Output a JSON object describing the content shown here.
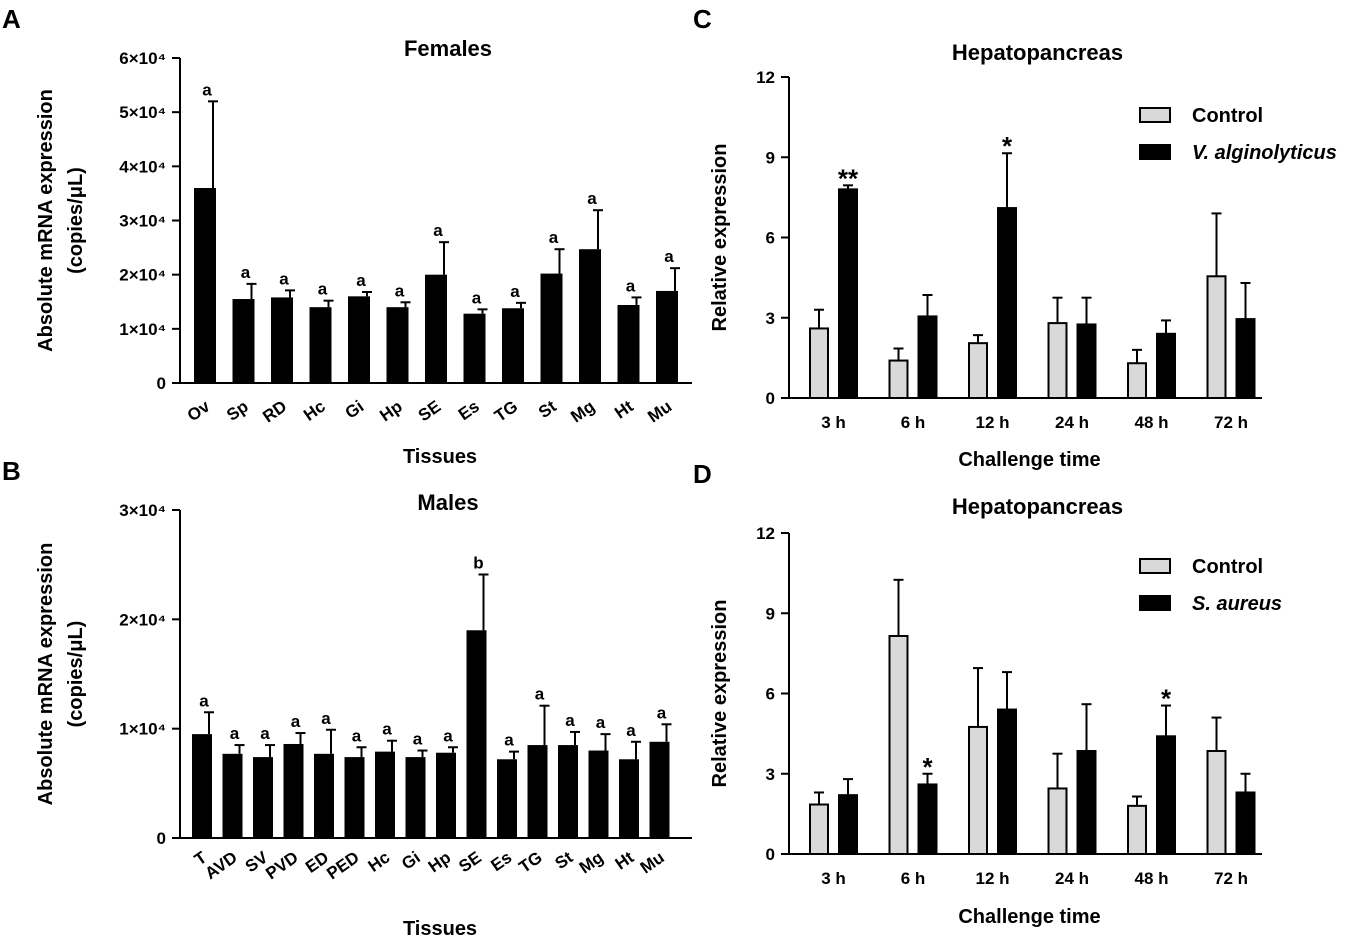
{
  "colors": {
    "bar": "#000000",
    "control": "#d9d9d9",
    "axis": "#000000"
  },
  "chart_data": [
    {
      "panel": "A",
      "type": "bar",
      "title": "Females",
      "xlabel": "Tissues",
      "ylabel_lines": [
        "Absolute mRNA  expression",
        "(copies/μL)"
      ],
      "ylim": [
        0,
        60000
      ],
      "yticks": [
        0,
        10000,
        20000,
        30000,
        40000,
        50000,
        60000
      ],
      "ytick_labels": [
        "0",
        "1×10⁴",
        "2×10⁴",
        "3×10⁴",
        "4×10⁴",
        "5×10⁴",
        "6×10⁴"
      ],
      "categories": [
        "Ov",
        "Sp",
        "RD",
        "Hc",
        "Gi",
        "Hp",
        "SE",
        "Es",
        "TG",
        "St",
        "Mg",
        "Ht",
        "Mu"
      ],
      "values": [
        36000,
        15500,
        15800,
        14000,
        16000,
        14000,
        20000,
        12800,
        13800,
        20200,
        24700,
        14400,
        17000
      ],
      "errors": [
        16000,
        2800,
        1300,
        1200,
        800,
        900,
        6000,
        800,
        1000,
        4500,
        7200,
        1400,
        4200
      ],
      "letters": [
        "a",
        "a",
        "a",
        "a",
        "a",
        "a",
        "a",
        "a",
        "a",
        "a",
        "a",
        "a",
        "a"
      ]
    },
    {
      "panel": "B",
      "type": "bar",
      "title": "Males",
      "xlabel": "Tissues",
      "ylabel_lines": [
        "Absolute mRNA  expression",
        "(copies/μL)"
      ],
      "ylim": [
        0,
        30000
      ],
      "yticks": [
        0,
        10000,
        20000,
        30000
      ],
      "ytick_labels": [
        "0",
        "1×10⁴",
        "2×10⁴",
        "3×10⁴"
      ],
      "categories": [
        "T",
        "AVD",
        "SV",
        "PVD",
        "ED",
        "PED",
        "Hc",
        "Gi",
        "Hp",
        "SE",
        "Es",
        "TG",
        "St",
        "Mg",
        "Ht",
        "Mu"
      ],
      "values": [
        9500,
        7700,
        7400,
        8600,
        7700,
        7400,
        7900,
        7400,
        7800,
        19000,
        7200,
        8500,
        8500,
        8000,
        7200,
        8800
      ],
      "errors": [
        2000,
        800,
        1100,
        1000,
        2200,
        900,
        1000,
        600,
        500,
        5100,
        700,
        3600,
        1200,
        1500,
        1600,
        1600
      ],
      "letters": [
        "a",
        "a",
        "a",
        "a",
        "a",
        "a",
        "a",
        "a",
        "a",
        "b",
        "a",
        "a",
        "a",
        "a",
        "a",
        "a"
      ]
    },
    {
      "panel": "C",
      "type": "bar",
      "title": "Hepatopancreas",
      "xlabel": "Challenge time",
      "ylabel": "Relative expression",
      "ylim": [
        0,
        12
      ],
      "yticks": [
        0,
        3,
        6,
        9,
        12
      ],
      "ytick_labels": [
        "0",
        "3",
        "6",
        "9",
        "12"
      ],
      "categories": [
        "3 h",
        "6 h",
        "12 h",
        "24 h",
        "48 h",
        "72 h"
      ],
      "series": [
        {
          "name": "Control",
          "values": [
            2.6,
            1.4,
            2.05,
            2.8,
            1.3,
            4.55
          ],
          "errors": [
            0.7,
            0.45,
            0.3,
            0.95,
            0.5,
            2.35
          ]
        },
        {
          "name": "V. alginolyticus",
          "values": [
            7.8,
            3.05,
            7.1,
            2.75,
            2.4,
            2.95
          ],
          "errors": [
            0.15,
            0.8,
            2.05,
            1.0,
            0.5,
            1.35
          ]
        }
      ],
      "significance": [
        "**",
        "",
        "*",
        "",
        "",
        ""
      ]
    },
    {
      "panel": "D",
      "type": "bar",
      "title": "Hepatopancreas",
      "xlabel": "Challenge time",
      "ylabel": "Relative expression",
      "ylim": [
        0,
        12
      ],
      "yticks": [
        0,
        3,
        6,
        9,
        12
      ],
      "ytick_labels": [
        "0",
        "3",
        "6",
        "9",
        "12"
      ],
      "categories": [
        "3 h",
        "6 h",
        "12 h",
        "24 h",
        "48 h",
        "72 h"
      ],
      "series": [
        {
          "name": "Control",
          "values": [
            1.85,
            8.15,
            4.75,
            2.45,
            1.8,
            3.85
          ],
          "errors": [
            0.45,
            2.1,
            2.2,
            1.3,
            0.35,
            1.25
          ]
        },
        {
          "name": "S. aureus",
          "values": [
            2.2,
            2.6,
            5.4,
            3.85,
            4.4,
            2.3
          ],
          "errors": [
            0.6,
            0.4,
            1.4,
            1.75,
            1.15,
            0.7
          ]
        }
      ],
      "significance": [
        "",
        "*",
        "",
        "",
        "*",
        ""
      ]
    }
  ]
}
